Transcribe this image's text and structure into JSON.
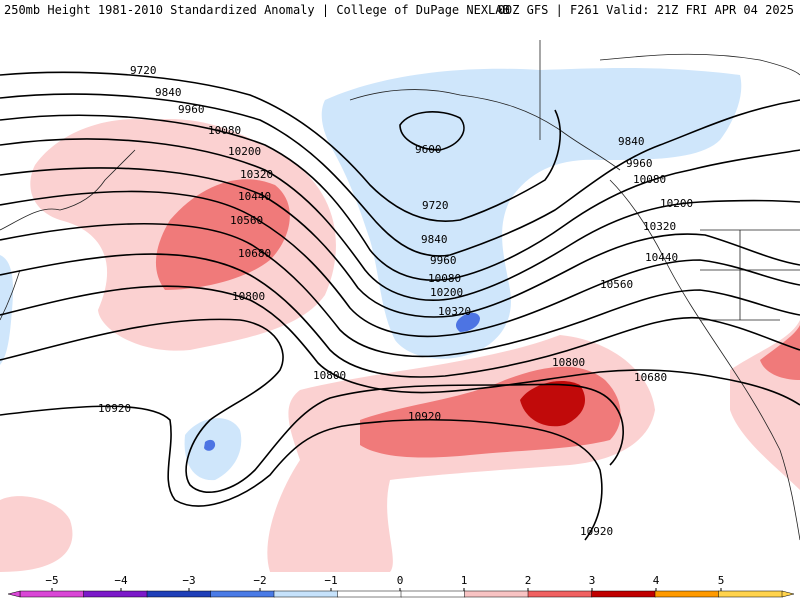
{
  "header": {
    "title_left": "250mb Height 1981-2010 Standardized Anomaly | College of DuPage NEXLAB",
    "title_right": "00Z GFS | F261 Valid: 21Z FRI APR 04 2025"
  },
  "contour_labels": {
    "h9720a": "9720",
    "h9840a": "9840",
    "h9960a": "9960",
    "h10080a": "10080",
    "h10200a": "10200",
    "h10320a": "10320",
    "h10440a": "10440",
    "h10560a": "10560",
    "h10680a": "10680",
    "h10800a": "10800",
    "h10920a": "10920",
    "h10800b": "10800",
    "h9600": "9600",
    "h9720b": "9720",
    "h9840b": "9840",
    "h9960b": "9960",
    "h10080b": "10080",
    "h10200b": "10200",
    "h10320b": "10320",
    "h9840c": "9840",
    "h9960c": "9960",
    "h10080c": "10080",
    "h10200c": "10200",
    "h10320c": "10320",
    "h10440c": "10440",
    "h10560c": "10560",
    "h10680c": "10680",
    "h10800c": "10800",
    "h10920b": "10920",
    "h10920c": "10920"
  },
  "colorbar": {
    "ticks": [
      "−5",
      "−4",
      "−3",
      "−2",
      "−1",
      "0",
      "1",
      "2",
      "3",
      "4",
      "5"
    ],
    "colors": [
      "#d946d6",
      "#7b19c9",
      "#1f3fb8",
      "#4a7be6",
      "#c6e2fb",
      "#ffffff",
      "#ffffff",
      "#f8c3c3",
      "#f06161",
      "#c00000",
      "#ff9a00",
      "#ffd34d"
    ]
  },
  "anomaly_colors": {
    "pos1": "#fbd1d1",
    "pos2": "#f07a7a",
    "pos3": "#c10a0a",
    "neg1": "#cfe6fb",
    "neg2": "#4d74e3"
  }
}
